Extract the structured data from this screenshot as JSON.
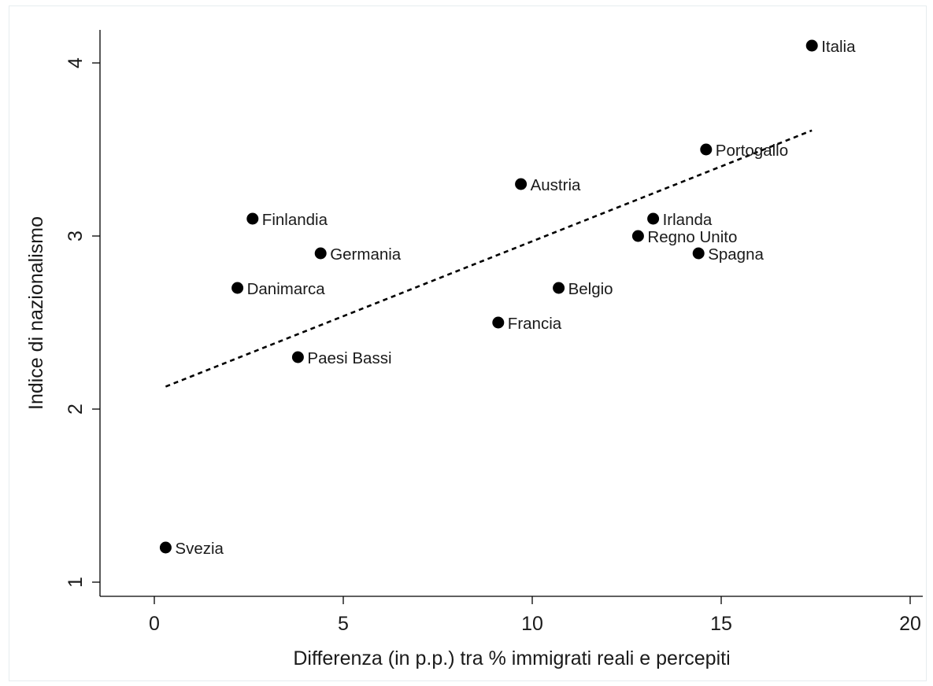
{
  "chart_data": {
    "type": "scatter",
    "title": "",
    "xlabel": "Differenza (in p.p.) tra % immigrati reali e percepiti",
    "ylabel": "Indice di nazionalismo",
    "xlim": [
      -1.5,
      20.7
    ],
    "ylim": [
      0.9,
      4.2
    ],
    "x_ticks": [
      0,
      5,
      10,
      15,
      20
    ],
    "y_ticks": [
      1,
      2,
      3,
      4
    ],
    "grid": false,
    "points": [
      {
        "label": "Italia",
        "x": 17.4,
        "y": 4.1
      },
      {
        "label": "Portogallo",
        "x": 14.6,
        "y": 3.5
      },
      {
        "label": "Austria",
        "x": 9.7,
        "y": 3.3
      },
      {
        "label": "Finlandia",
        "x": 2.6,
        "y": 3.1
      },
      {
        "label": "Irlanda",
        "x": 13.2,
        "y": 3.1
      },
      {
        "label": "Regno Unito",
        "x": 12.8,
        "y": 3.0
      },
      {
        "label": "Germania",
        "x": 4.4,
        "y": 2.9
      },
      {
        "label": "Spagna",
        "x": 14.4,
        "y": 2.9
      },
      {
        "label": "Danimarca",
        "x": 2.2,
        "y": 2.7
      },
      {
        "label": "Belgio",
        "x": 10.7,
        "y": 2.7
      },
      {
        "label": "Francia",
        "x": 9.1,
        "y": 2.5
      },
      {
        "label": "Paesi Bassi",
        "x": 3.8,
        "y": 2.3
      },
      {
        "label": "Svezia",
        "x": 0.3,
        "y": 1.2
      }
    ],
    "trendline": {
      "style": "dashed",
      "from": {
        "x": 0.3,
        "y": 2.13
      },
      "to": {
        "x": 17.4,
        "y": 3.61
      }
    },
    "marker_color": "#000000"
  }
}
